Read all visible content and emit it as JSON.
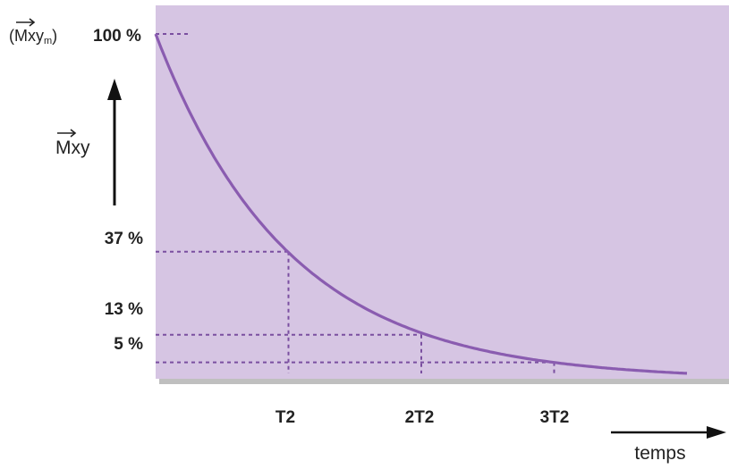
{
  "chart_data": {
    "type": "line",
    "title": "",
    "x_axis_label": "temps",
    "y_axis_label": "Mxy",
    "y_max_label_prefix": "(Mxy",
    "y_max_label_sub": "m",
    "y_max_label_suffix": ")",
    "y_max_value_label": "100 %",
    "x_ticks": [
      {
        "value": 1,
        "label": "T2"
      },
      {
        "value": 2,
        "label": "2T2"
      },
      {
        "value": 3,
        "label": "3T2"
      }
    ],
    "y_ticks": [
      {
        "value": 100,
        "label": "100 %"
      },
      {
        "value": 37,
        "label": "37 %"
      },
      {
        "value": 13,
        "label": "13 %"
      },
      {
        "value": 5,
        "label": "5 %"
      }
    ],
    "reference_points": [
      {
        "x": 1,
        "y": 37
      },
      {
        "x": 2,
        "y": 13
      },
      {
        "x": 3,
        "y": 5
      }
    ],
    "series": [
      {
        "curve": "exponential decay",
        "formula": "100*exp(-x)",
        "x": [
          0,
          0.25,
          0.5,
          1,
          1.5,
          2,
          2.5,
          3,
          3.5,
          4
        ],
        "values": [
          100,
          78,
          61,
          37,
          22,
          13,
          8,
          5,
          3,
          1.8
        ]
      }
    ],
    "xlim": [
      0,
      4
    ],
    "ylim": [
      0,
      100
    ],
    "grid": false,
    "colors": {
      "plot_background": "#d6c5e3",
      "curve": "#8a5cb0",
      "dashed_guides": "#7a4fa0",
      "text": "#222222",
      "shadow": "#8b8b8b"
    }
  }
}
